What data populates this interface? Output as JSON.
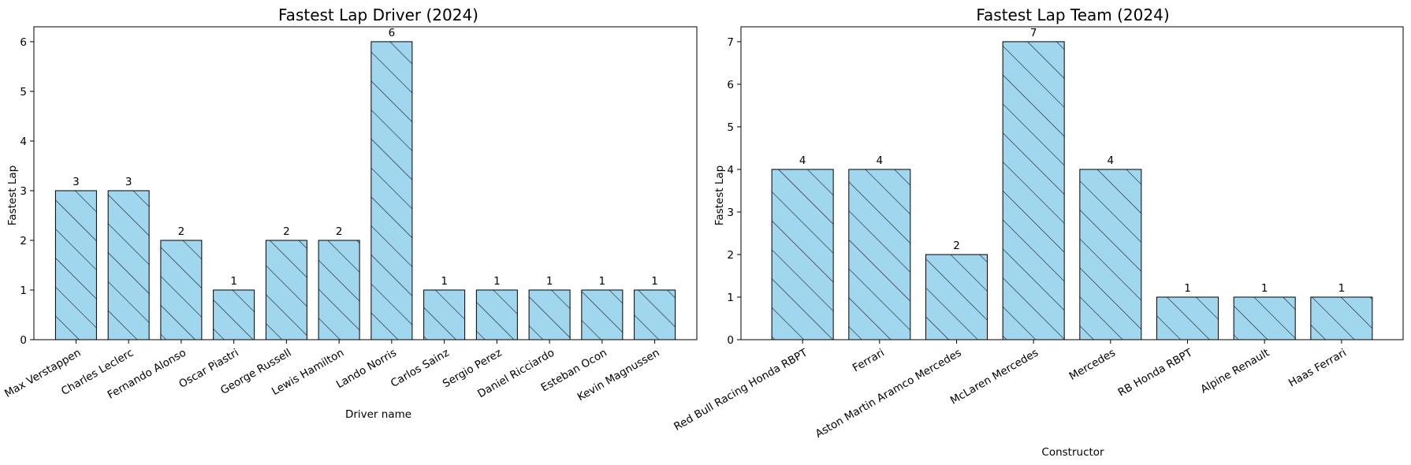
{
  "colors": {
    "bar_fill": "#a0d6ee",
    "bar_edge": "#000000",
    "hatch": "#1a1a1a",
    "axis": "#000000"
  },
  "chart_data": [
    {
      "type": "bar",
      "title": "Fastest Lap Driver (2024)",
      "xlabel": "Driver name",
      "ylabel": "Fastest Lap",
      "ylim": [
        0,
        6.3
      ],
      "yticks": [
        0,
        1,
        2,
        3,
        4,
        5,
        6
      ],
      "hatch": "/",
      "grid": false,
      "categories": [
        "Max Verstappen",
        "Charles Leclerc",
        "Fernando Alonso",
        "Oscar Piastri",
        "George Russell",
        "Lewis Hamilton",
        "Lando Norris",
        "Carlos Sainz",
        "Sergio Perez",
        "Daniel Ricciardo",
        "Esteban Ocon",
        "Kevin Magnussen"
      ],
      "values": [
        3,
        3,
        2,
        1,
        2,
        2,
        6,
        1,
        1,
        1,
        1,
        1
      ]
    },
    {
      "type": "bar",
      "title": "Fastest Lap Team (2024)",
      "xlabel": "Constructor",
      "ylabel": "Fastest Lap",
      "ylim": [
        0,
        7.35
      ],
      "yticks": [
        0,
        1,
        2,
        3,
        4,
        5,
        6,
        7
      ],
      "hatch": "/",
      "grid": false,
      "categories": [
        "Red Bull Racing Honda RBPT",
        "Ferrari",
        "Aston Martin Aramco Mercedes",
        "McLaren Mercedes",
        "Mercedes",
        "RB Honda RBPT",
        "Alpine Renault",
        "Haas Ferrari"
      ],
      "values": [
        4,
        4,
        2,
        7,
        4,
        1,
        1,
        1
      ]
    }
  ]
}
